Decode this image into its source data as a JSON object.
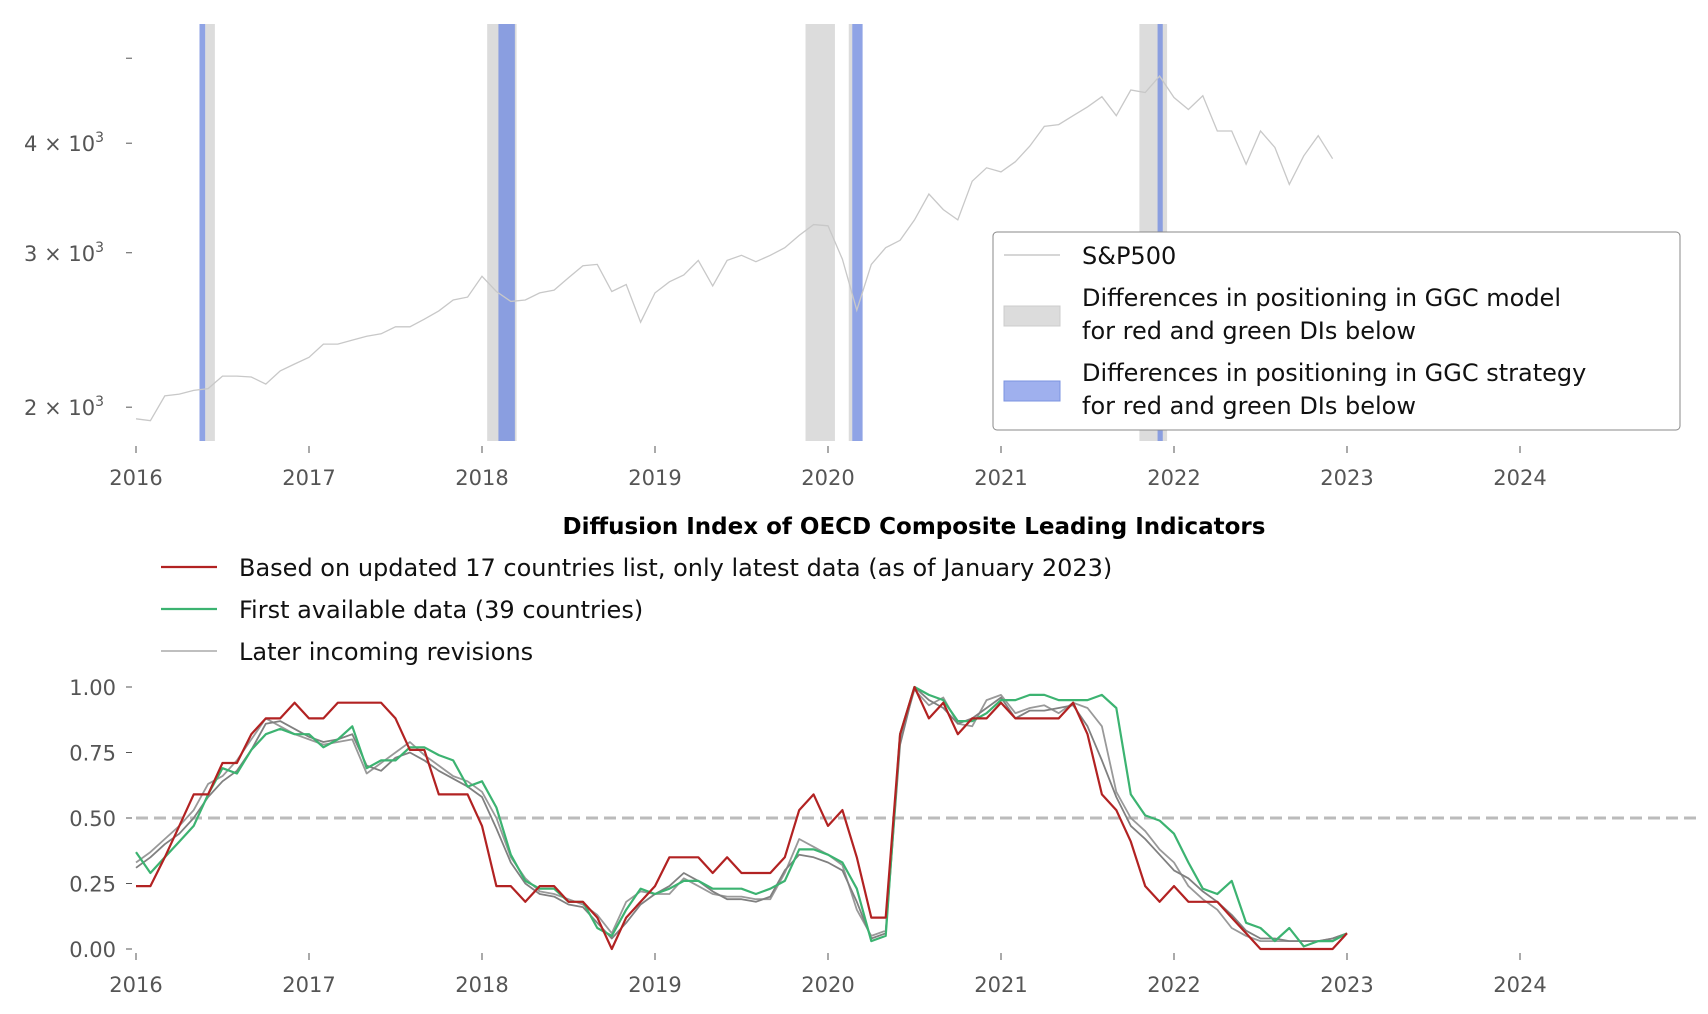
{
  "chart_data": [
    {
      "type": "line",
      "title": "",
      "yscale": "log",
      "ylim": [
        1830,
        5470
      ],
      "xlim": [
        2016,
        2025
      ],
      "x_ticks": [
        "2016",
        "2017",
        "2018",
        "2019",
        "2020",
        "2021",
        "2022",
        "2023",
        "2024"
      ],
      "y_ticks": [
        {
          "value": 2000,
          "label": "2 × 10",
          "exp": "3"
        },
        {
          "value": 3000,
          "label": "3 × 10",
          "exp": "3"
        },
        {
          "value": 4000,
          "label": "4 × 10",
          "exp": "3"
        },
        {
          "value": 5000,
          "label": "",
          "exp": ""
        }
      ],
      "series": [
        {
          "name": "S&P500",
          "color": "#c8c8c8",
          "x_start": 2016.0,
          "step_months": 1,
          "values": [
            1940,
            1930,
            2060,
            2070,
            2090,
            2100,
            2170,
            2170,
            2165,
            2125,
            2200,
            2240,
            2280,
            2360,
            2360,
            2385,
            2410,
            2425,
            2470,
            2470,
            2520,
            2575,
            2650,
            2670,
            2820,
            2710,
            2640,
            2650,
            2700,
            2720,
            2810,
            2900,
            2910,
            2710,
            2760,
            2500,
            2700,
            2780,
            2830,
            2940,
            2750,
            2940,
            2980,
            2930,
            2980,
            3040,
            3140,
            3230,
            3220,
            2950,
            2580,
            2910,
            3040,
            3100,
            3270,
            3500,
            3360,
            3270,
            3620,
            3750,
            3710,
            3810,
            3970,
            4180,
            4200,
            4300,
            4400,
            4520,
            4300,
            4600,
            4570,
            4770,
            4510,
            4370,
            4530,
            4130,
            4130,
            3785,
            4130,
            3955,
            3590,
            3870,
            4080,
            3840
          ]
        }
      ],
      "shaded_regions": [
        {
          "kind": "model",
          "color": "#dcdcdc",
          "x": [
            2016.4,
            2016.456
          ]
        },
        {
          "kind": "strategy",
          "color": "#7b93e0",
          "x": [
            2016.367,
            2016.4
          ]
        },
        {
          "kind": "model",
          "color": "#dcdcdc",
          "x": [
            2018.03,
            2018.2
          ]
        },
        {
          "kind": "strategy",
          "color": "#7b93e0",
          "x": [
            2018.095,
            2018.19
          ]
        },
        {
          "kind": "model",
          "color": "#dcdcdc",
          "x": [
            2019.87,
            2020.04
          ]
        },
        {
          "kind": "model",
          "color": "#dcdcdc",
          "x": [
            2020.12,
            2020.14
          ]
        },
        {
          "kind": "strategy",
          "color": "#7b93e0",
          "x": [
            2020.14,
            2020.2
          ]
        },
        {
          "kind": "model",
          "color": "#dcdcdc",
          "x": [
            2021.8,
            2021.96
          ]
        },
        {
          "kind": "strategy",
          "color": "#7b93e0",
          "x": [
            2021.905,
            2021.935
          ]
        }
      ],
      "legend": {
        "placement": "lower-right",
        "entries": [
          {
            "label": "S&P500"
          },
          {
            "label": [
              "Differences in positioning in GGC model",
              "for red and green DIs below"
            ]
          },
          {
            "label": [
              "Differences in positioning in GGC strategy",
              "for red and green DIs below"
            ]
          }
        ]
      }
    },
    {
      "type": "line",
      "title": "Diffusion Index of OECD Composite Leading Indicators",
      "ylim": [
        0,
        1
      ],
      "xlim": [
        2016,
        2025
      ],
      "x_ticks": [
        "2016",
        "2017",
        "2018",
        "2019",
        "2020",
        "2021",
        "2022",
        "2023",
        "2024"
      ],
      "y_ticks": [
        "0.00",
        "0.25",
        "0.50",
        "0.75",
        "1.00"
      ],
      "reference_line": {
        "y": 0.5,
        "style": "dashed",
        "color": "#bbbbbb"
      },
      "legend": {
        "placement": "top-left"
      },
      "series": [
        {
          "name": "Later incoming revisions",
          "color": "#999999",
          "x_start": 2016.0,
          "step_months": 1,
          "values": [
            0.33,
            0.37,
            0.42,
            0.47,
            0.53,
            0.63,
            0.66,
            0.72,
            0.8,
            0.88,
            0.85,
            0.82,
            0.8,
            0.78,
            0.79,
            0.8,
            0.67,
            0.71,
            0.75,
            0.79,
            0.74,
            0.7,
            0.66,
            0.64,
            0.6,
            0.5,
            0.35,
            0.27,
            0.22,
            0.21,
            0.19,
            0.17,
            0.13,
            0.06,
            0.18,
            0.22,
            0.21,
            0.21,
            0.27,
            0.24,
            0.21,
            0.2,
            0.2,
            0.19,
            0.19,
            0.29,
            0.42,
            0.39,
            0.36,
            0.32,
            0.15,
            0.05,
            0.07,
            0.8,
            0.99,
            0.93,
            0.96,
            0.86,
            0.85,
            0.95,
            0.97,
            0.9,
            0.92,
            0.93,
            0.9,
            0.94,
            0.92,
            0.85,
            0.6,
            0.5,
            0.45,
            0.38,
            0.33,
            0.24,
            0.19,
            0.15,
            0.08,
            0.05,
            0.03,
            0.03,
            0.03,
            0.03,
            0.03,
            0.04,
            0.06
          ]
        },
        {
          "name": "Later incoming revisions (2)",
          "color": "#808080",
          "x_start": 2016.0,
          "step_months": 1,
          "values": [
            0.31,
            0.35,
            0.4,
            0.44,
            0.5,
            0.58,
            0.64,
            0.68,
            0.76,
            0.86,
            0.87,
            0.84,
            0.81,
            0.79,
            0.8,
            0.82,
            0.7,
            0.68,
            0.73,
            0.75,
            0.72,
            0.68,
            0.65,
            0.62,
            0.58,
            0.46,
            0.33,
            0.25,
            0.21,
            0.2,
            0.17,
            0.16,
            0.1,
            0.04,
            0.1,
            0.17,
            0.21,
            0.24,
            0.29,
            0.26,
            0.22,
            0.19,
            0.19,
            0.18,
            0.2,
            0.3,
            0.36,
            0.35,
            0.33,
            0.3,
            0.18,
            0.04,
            0.06,
            0.78,
            1.0,
            0.95,
            0.92,
            0.86,
            0.88,
            0.92,
            0.96,
            0.88,
            0.91,
            0.91,
            0.92,
            0.93,
            0.85,
            0.72,
            0.58,
            0.47,
            0.42,
            0.36,
            0.3,
            0.27,
            0.22,
            0.18,
            0.13,
            0.07,
            0.04,
            0.04,
            0.03,
            0.03,
            0.03,
            0.04,
            0.06
          ]
        },
        {
          "name": "First available data (39 countries)",
          "color": "#3cb371",
          "x_start": 2016.0,
          "step_months": 1,
          "values": [
            0.37,
            0.29,
            0.35,
            0.41,
            0.47,
            0.59,
            0.69,
            0.67,
            0.76,
            0.82,
            0.84,
            0.82,
            0.82,
            0.77,
            0.8,
            0.85,
            0.69,
            0.72,
            0.72,
            0.77,
            0.77,
            0.74,
            0.72,
            0.62,
            0.64,
            0.54,
            0.36,
            0.26,
            0.23,
            0.23,
            0.18,
            0.18,
            0.08,
            0.05,
            0.15,
            0.23,
            0.21,
            0.23,
            0.26,
            0.26,
            0.23,
            0.23,
            0.23,
            0.21,
            0.23,
            0.26,
            0.38,
            0.38,
            0.36,
            0.33,
            0.23,
            0.03,
            0.05,
            0.82,
            1.0,
            0.97,
            0.95,
            0.87,
            0.87,
            0.9,
            0.95,
            0.95,
            0.97,
            0.97,
            0.95,
            0.95,
            0.95,
            0.97,
            0.92,
            0.59,
            0.51,
            0.49,
            0.44,
            0.33,
            0.23,
            0.21,
            0.26,
            0.1,
            0.08,
            0.03,
            0.08,
            0.01,
            0.03,
            0.03,
            0.06
          ]
        },
        {
          "name": "Based on updated 17 countries list, only latest data (as of January 2023)",
          "color": "#b22222",
          "x_start": 2016.0,
          "step_months": 1,
          "values": [
            0.24,
            0.24,
            0.35,
            0.47,
            0.59,
            0.59,
            0.71,
            0.71,
            0.82,
            0.88,
            0.88,
            0.94,
            0.88,
            0.88,
            0.94,
            0.94,
            0.94,
            0.94,
            0.88,
            0.76,
            0.76,
            0.59,
            0.59,
            0.59,
            0.47,
            0.24,
            0.24,
            0.18,
            0.24,
            0.24,
            0.18,
            0.18,
            0.12,
            0.0,
            0.12,
            0.18,
            0.24,
            0.35,
            0.35,
            0.35,
            0.29,
            0.35,
            0.29,
            0.29,
            0.29,
            0.35,
            0.53,
            0.59,
            0.47,
            0.53,
            0.35,
            0.12,
            0.12,
            0.82,
            1.0,
            0.88,
            0.94,
            0.82,
            0.88,
            0.88,
            0.94,
            0.88,
            0.88,
            0.88,
            0.88,
            0.94,
            0.82,
            0.59,
            0.53,
            0.41,
            0.24,
            0.18,
            0.24,
            0.18,
            0.18,
            0.18,
            0.12,
            0.06,
            0.0,
            0.0,
            0.0,
            0.0,
            0.0,
            0.0,
            0.06
          ]
        }
      ],
      "legend_entries": [
        "Based on updated 17 countries list, only latest data (as of January 2023)",
        "First available data (39 countries)",
        "Later incoming revisions"
      ]
    }
  ]
}
